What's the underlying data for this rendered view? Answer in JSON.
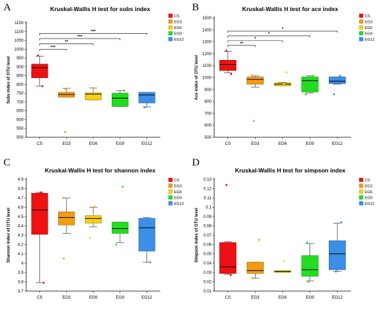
{
  "palette": {
    "CS": "#ee1111",
    "EG3": "#f39c12",
    "EG6": "#f6d015",
    "EG9": "#22dd22",
    "EG12": "#3b8fe6"
  },
  "chart_data": [
    {
      "panel_label": "A",
      "type": "box",
      "title": "Kruskal-Wallis H test for sobs index",
      "ylabel": "Sobs index of OTU level",
      "xlabel": "",
      "categories": [
        "CS",
        "EG3",
        "EG6",
        "EG9",
        "EG12"
      ],
      "ylim": [
        500,
        1150
      ],
      "yticks": [
        500,
        550,
        600,
        650,
        700,
        750,
        800,
        850,
        900,
        950,
        1000,
        1050,
        1100,
        1150
      ],
      "legend": [
        "CS",
        "EG3",
        "EG6",
        "EG9",
        "EG12"
      ],
      "legend_position": "top-right",
      "boxes": [
        {
          "group": "CS",
          "whisker_low": 790,
          "q1": 838,
          "median": 895,
          "q3": 915,
          "whisker_high": 960
        },
        {
          "group": "EG3",
          "whisker_low": 728,
          "q1": 728,
          "median": 743,
          "q3": 755,
          "whisker_high": 778
        },
        {
          "group": "EG6",
          "whisker_low": 712,
          "q1": 712,
          "median": 745,
          "q3": 752,
          "whisker_high": 780
        },
        {
          "group": "EG9",
          "whisker_low": 675,
          "q1": 675,
          "median": 722,
          "q3": 750,
          "whisker_high": 765
        },
        {
          "group": "EG12",
          "whisker_low": 672,
          "q1": 695,
          "median": 740,
          "q3": 755,
          "whisker_high": 755
        }
      ],
      "points": [
        {
          "group": "CS",
          "y": 965,
          "dx": -0.06
        },
        {
          "group": "CS",
          "y": 790,
          "dx": 0.1
        },
        {
          "group": "EG3",
          "y": 530,
          "dx": -0.05
        },
        {
          "group": "EG3",
          "y": 775,
          "dx": -0.05
        },
        {
          "group": "EG6",
          "y": 778,
          "dx": 0.1
        },
        {
          "group": "EG9",
          "y": 765,
          "dx": 0.15
        },
        {
          "group": "EG12",
          "y": 670,
          "dx": -0.08
        }
      ],
      "significance": [
        {
          "from": "CS",
          "to": "EG3",
          "label": "***",
          "y": 1000
        },
        {
          "from": "CS",
          "to": "EG6",
          "label": "**",
          "y": 1030
        },
        {
          "from": "CS",
          "to": "EG9",
          "label": "***",
          "y": 1060
        },
        {
          "from": "CS",
          "to": "EG12",
          "label": "***",
          "y": 1090
        }
      ]
    },
    {
      "panel_label": "B",
      "type": "box",
      "title": "Kruskal-Wallis H test for ace index",
      "ylabel": "Ace index of OTU level",
      "xlabel": "",
      "categories": [
        "CS",
        "EG3",
        "EG6",
        "EG9",
        "EG12"
      ],
      "ylim": [
        500,
        1500
      ],
      "yticks": [
        500,
        600,
        700,
        800,
        900,
        1000,
        1100,
        1200,
        1300,
        1400,
        1500
      ],
      "legend": [
        "CS",
        "EG3",
        "EG6",
        "EG9",
        "EG12"
      ],
      "legend_position": "top-right",
      "boxes": [
        {
          "group": "CS",
          "whisker_low": 1040,
          "q1": 1060,
          "median": 1110,
          "q3": 1145,
          "whisker_high": 1220
        },
        {
          "group": "EG3",
          "whisker_low": 920,
          "q1": 945,
          "median": 985,
          "q3": 1005,
          "whisker_high": 1015
        },
        {
          "group": "EG6",
          "whisker_low": 930,
          "q1": 930,
          "median": 945,
          "q3": 955,
          "whisker_high": 960
        },
        {
          "group": "EG9",
          "whisker_low": 870,
          "q1": 880,
          "median": 975,
          "q3": 1005,
          "whisker_high": 1015
        },
        {
          "group": "EG12",
          "whisker_low": 945,
          "q1": 950,
          "median": 970,
          "q3": 1005,
          "whisker_high": 1005
        }
      ],
      "points": [
        {
          "group": "CS",
          "y": 1225,
          "dx": -0.05
        },
        {
          "group": "CS",
          "y": 1030,
          "dx": 0.12
        },
        {
          "group": "EG3",
          "y": 635,
          "dx": -0.05
        },
        {
          "group": "EG3",
          "y": 1020,
          "dx": -0.12
        },
        {
          "group": "EG6",
          "y": 1045,
          "dx": 0.15
        },
        {
          "group": "EG6",
          "y": 945,
          "dx": 0.05
        },
        {
          "group": "EG9",
          "y": 860,
          "dx": -0.15
        },
        {
          "group": "EG9",
          "y": 1015,
          "dx": 0.1
        },
        {
          "group": "EG12",
          "y": 860,
          "dx": -0.12
        },
        {
          "group": "EG12",
          "y": 1015,
          "dx": 0.1
        }
      ],
      "significance": [
        {
          "from": "CS",
          "to": "EG3",
          "label": "**",
          "y": 1270
        },
        {
          "from": "CS",
          "to": "EG6",
          "label": "*",
          "y": 1310
        },
        {
          "from": "CS",
          "to": "EG9",
          "label": "*",
          "y": 1350
        },
        {
          "from": "CS",
          "to": "EG12",
          "label": "*",
          "y": 1390
        }
      ]
    },
    {
      "panel_label": "C",
      "type": "box",
      "title": "Kruskal-Wallis H test for shannon index",
      "ylabel": "Shannon index of OTU level",
      "xlabel": "",
      "categories": [
        "CS",
        "EG3",
        "EG6",
        "EG9",
        "EG12"
      ],
      "ylim": [
        3.7,
        4.9
      ],
      "yticks": [
        3.7,
        3.8,
        3.9,
        4,
        4.1,
        4.2,
        4.3,
        4.4,
        4.5,
        4.6,
        4.7,
        4.8,
        4.9
      ],
      "legend": [
        "CS",
        "EG3",
        "EG6",
        "EG9",
        "EG12"
      ],
      "legend_position": "top-right",
      "boxes": [
        {
          "group": "CS",
          "whisker_low": 3.79,
          "q1": 4.31,
          "median": 4.57,
          "q3": 4.75,
          "whisker_high": 4.76
        },
        {
          "group": "EG3",
          "whisker_low": 4.32,
          "q1": 4.41,
          "median": 4.49,
          "q3": 4.55,
          "whisker_high": 4.7
        },
        {
          "group": "EG6",
          "whisker_low": 4.39,
          "q1": 4.43,
          "median": 4.48,
          "q3": 4.51,
          "whisker_high": 4.6
        },
        {
          "group": "EG9",
          "whisker_low": 4.22,
          "q1": 4.32,
          "median": 4.37,
          "q3": 4.44,
          "whisker_high": 4.44
        },
        {
          "group": "EG12",
          "whisker_low": 4.01,
          "q1": 4.13,
          "median": 4.38,
          "q3": 4.48,
          "whisker_high": 4.49
        }
      ],
      "points": [
        {
          "group": "CS",
          "y": 4.76,
          "dx": 0.05
        },
        {
          "group": "CS",
          "y": 3.79,
          "dx": 0.15
        },
        {
          "group": "EG3",
          "y": 4.05,
          "dx": -0.1
        },
        {
          "group": "EG3",
          "y": 4.7,
          "dx": -0.12
        },
        {
          "group": "EG6",
          "y": 4.27,
          "dx": -0.12
        },
        {
          "group": "EG6",
          "y": 4.61,
          "dx": 0.05
        },
        {
          "group": "EG9",
          "y": 4.82,
          "dx": 0.1
        },
        {
          "group": "EG9",
          "y": 4.2,
          "dx": -0.15
        },
        {
          "group": "EG12",
          "y": 4.01,
          "dx": 0.12
        }
      ],
      "significance": []
    },
    {
      "panel_label": "D",
      "type": "box",
      "title": "Kruskal-Wallis H test for simpson index",
      "ylabel": "Simpson index of OTU level",
      "xlabel": "",
      "categories": [
        "CS",
        "EG3",
        "EG6",
        "EG9",
        "EG12"
      ],
      "ylim": [
        0.01,
        0.13
      ],
      "yticks": [
        0.01,
        0.02,
        0.03,
        0.04,
        0.05,
        0.06,
        0.07,
        0.08,
        0.09,
        0.1,
        0.11,
        0.12,
        0.13
      ],
      "legend": [
        "CS",
        "EG3",
        "EG6",
        "EG9",
        "EG12"
      ],
      "legend_position": "top-right",
      "boxes": [
        {
          "group": "CS",
          "whisker_low": 0.028,
          "q1": 0.029,
          "median": 0.036,
          "q3": 0.062,
          "whisker_high": 0.063
        },
        {
          "group": "EG3",
          "whisker_low": 0.024,
          "q1": 0.029,
          "median": 0.032,
          "q3": 0.041,
          "whisker_high": 0.041
        },
        {
          "group": "EG6",
          "whisker_low": 0.03,
          "q1": 0.03,
          "median": 0.031,
          "q3": 0.032,
          "whisker_high": 0.032
        },
        {
          "group": "EG9",
          "whisker_low": 0.021,
          "q1": 0.026,
          "median": 0.033,
          "q3": 0.048,
          "whisker_high": 0.061
        },
        {
          "group": "EG12",
          "whisker_low": 0.031,
          "q1": 0.033,
          "median": 0.05,
          "q3": 0.064,
          "whisker_high": 0.083
        }
      ],
      "points": [
        {
          "group": "CS",
          "y": 0.124,
          "dx": -0.05
        },
        {
          "group": "CS",
          "y": 0.027,
          "dx": 0.1
        },
        {
          "group": "EG3",
          "y": 0.065,
          "dx": 0.15
        },
        {
          "group": "EG3",
          "y": 0.024,
          "dx": -0.1
        },
        {
          "group": "EG6",
          "y": 0.042,
          "dx": 0.05
        },
        {
          "group": "EG9",
          "y": 0.062,
          "dx": -0.1
        },
        {
          "group": "EG9",
          "y": 0.02,
          "dx": -0.05
        },
        {
          "group": "EG12",
          "y": 0.084,
          "dx": 0.15
        },
        {
          "group": "EG12",
          "y": 0.031,
          "dx": -0.05
        }
      ],
      "significance": []
    }
  ]
}
